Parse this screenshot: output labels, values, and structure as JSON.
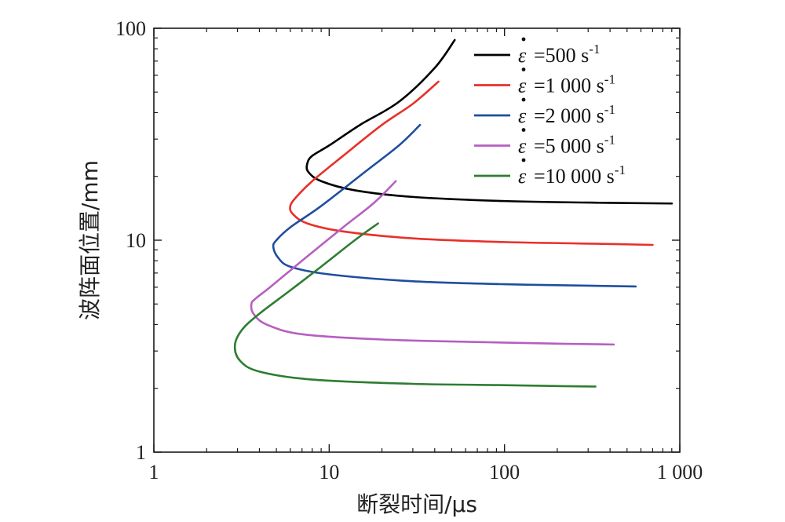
{
  "chart_data": {
    "type": "line",
    "xlabel": "断裂时间/μs",
    "ylabel": "波阵面位置/mm",
    "x_scale": "log",
    "y_scale": "log",
    "xlim": [
      1,
      1000
    ],
    "ylim": [
      1,
      100
    ],
    "x_ticks": [
      "1",
      "10",
      "100",
      "1 000"
    ],
    "y_ticks": [
      "1",
      "10",
      "100"
    ],
    "grid": false,
    "legend_position": "top-right",
    "legend_symbol": "ε̇",
    "series": [
      {
        "name": "=500 s",
        "unit_exponent": "-1",
        "color": "#000000",
        "points": [
          [
            52,
            88
          ],
          [
            40,
            65
          ],
          [
            25,
            45
          ],
          [
            15,
            35
          ],
          [
            10,
            28
          ],
          [
            8,
            25
          ],
          [
            7.5,
            23
          ],
          [
            7.6,
            21
          ],
          [
            9,
            19
          ],
          [
            14,
            17.2
          ],
          [
            30,
            16
          ],
          [
            100,
            15.3
          ],
          [
            400,
            15
          ],
          [
            900,
            14.9
          ]
        ]
      },
      {
        "name": "=1 000 s",
        "unit_exponent": "-1",
        "color": "#e8302a",
        "points": [
          [
            42,
            56
          ],
          [
            30,
            44
          ],
          [
            20,
            35
          ],
          [
            12,
            25
          ],
          [
            8,
            19
          ],
          [
            6.5,
            16
          ],
          [
            6,
            14.5
          ],
          [
            6.2,
            13.3
          ],
          [
            7.5,
            12
          ],
          [
            12,
            11
          ],
          [
            30,
            10.2
          ],
          [
            100,
            9.8
          ],
          [
            400,
            9.6
          ],
          [
            700,
            9.5
          ]
        ]
      },
      {
        "name": "=2 000 s",
        "unit_exponent": "-1",
        "color": "#1f4e9e",
        "points": [
          [
            33,
            35
          ],
          [
            25,
            28
          ],
          [
            16,
            21
          ],
          [
            9,
            14.5
          ],
          [
            6,
            11.5
          ],
          [
            5,
            10
          ],
          [
            4.8,
            9.3
          ],
          [
            5.1,
            8.3
          ],
          [
            6,
            7.5
          ],
          [
            10,
            6.9
          ],
          [
            30,
            6.4
          ],
          [
            100,
            6.2
          ],
          [
            300,
            6.1
          ],
          [
            560,
            6.05
          ]
        ]
      },
      {
        "name": "=5 000 s",
        "unit_exponent": "-1",
        "color": "#b65fc0",
        "points": [
          [
            24,
            19
          ],
          [
            18,
            15
          ],
          [
            12,
            11.5
          ],
          [
            7,
            8
          ],
          [
            4.6,
            6
          ],
          [
            3.8,
            5.3
          ],
          [
            3.6,
            5
          ],
          [
            3.7,
            4.5
          ],
          [
            4.4,
            4
          ],
          [
            7,
            3.6
          ],
          [
            20,
            3.4
          ],
          [
            80,
            3.3
          ],
          [
            200,
            3.25
          ],
          [
            420,
            3.22
          ]
        ]
      },
      {
        "name": "=10 000 s",
        "unit_exponent": "-1",
        "color": "#2e7d32",
        "points": [
          [
            19,
            12
          ],
          [
            14,
            10
          ],
          [
            9,
            7.5
          ],
          [
            6,
            5.8
          ],
          [
            4,
            4.5
          ],
          [
            3.2,
            3.8
          ],
          [
            2.9,
            3.2
          ],
          [
            3.1,
            2.7
          ],
          [
            4,
            2.4
          ],
          [
            8,
            2.2
          ],
          [
            30,
            2.1
          ],
          [
            100,
            2.07
          ],
          [
            200,
            2.05
          ],
          [
            330,
            2.04
          ]
        ]
      }
    ]
  }
}
